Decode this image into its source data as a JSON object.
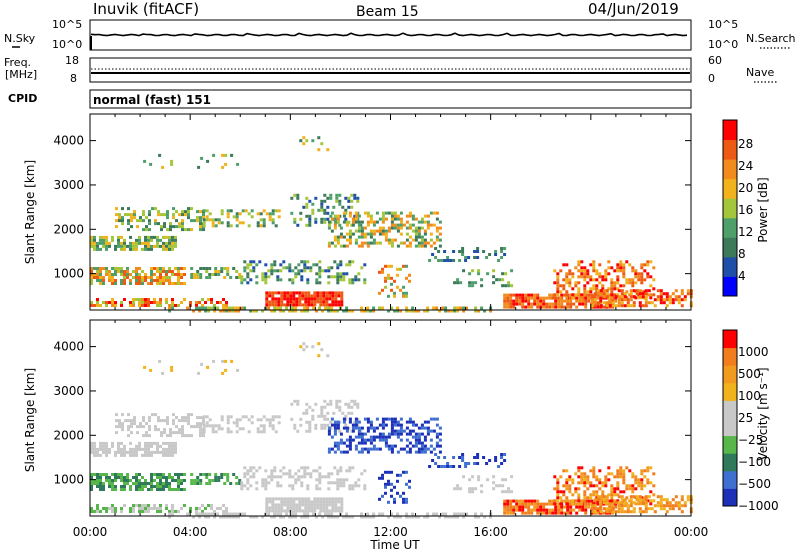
{
  "header": {
    "station": "Inuvik (fitACF)",
    "beam": "Beam 15",
    "date": "04/Jun/2019"
  },
  "panels": {
    "nsky": {
      "left_label": "N.Sky",
      "right_label": "N.Search",
      "left_ticks": [
        "10^5",
        "10^0"
      ],
      "right_ticks": [
        "10^5",
        "10^0"
      ]
    },
    "freq": {
      "left_label_1": "Freq.",
      "left_label_2": "[MHz]",
      "right_label": "Nave",
      "left_ticks": [
        "18",
        "8"
      ],
      "right_ticks": [
        "60",
        "0"
      ]
    },
    "cpid": {
      "label": "CPID",
      "text": "normal (fast) 151"
    }
  },
  "colors": {
    "power": [
      "#0000ff",
      "#1f4fa8",
      "#3c7a5a",
      "#4f9f6b",
      "#a4c63a",
      "#f2b21b",
      "#f28a1c",
      "#ee5a14",
      "#ff0000"
    ],
    "velocity": [
      "#1c30b8",
      "#3f6fd0",
      "#2f7a5a",
      "#58b74a",
      "#c8c8c8",
      "#c8c8c8",
      "#f2b21b",
      "#f29a1e",
      "#f27d1c",
      "#ff0000"
    ]
  },
  "chart_data": [
    {
      "type": "heatmap",
      "title": "Power",
      "ylabel": "Slant Range [km]",
      "xlabel": "",
      "x_ticks": [
        "00:00",
        "04:00",
        "08:00",
        "12:00",
        "16:00",
        "20:00",
        "00:00"
      ],
      "y_ticks": [
        "1000",
        "2000",
        "3000",
        "4000"
      ],
      "ylim": [
        180,
        4600
      ],
      "colorbar_label": "Power [dB]",
      "colorbar_ticks": [
        "4",
        "8",
        "12",
        "16",
        "20",
        "24",
        "28"
      ],
      "colorbar_range": [
        0,
        32
      ]
    },
    {
      "type": "heatmap",
      "title": "Velocity",
      "ylabel": "Slant Range [km]",
      "xlabel": "Time UT",
      "x_ticks": [
        "00:00",
        "04:00",
        "08:00",
        "12:00",
        "16:00",
        "20:00",
        "00:00"
      ],
      "y_ticks": [
        "1000",
        "2000",
        "3000",
        "4000"
      ],
      "ylim": [
        180,
        4600
      ],
      "colorbar_label": "Velocity [m s⁻¹]",
      "colorbar_ticks": [
        "1000",
        "500",
        "100",
        "25",
        "−25",
        "−100",
        "−500",
        "−1000"
      ]
    }
  ]
}
